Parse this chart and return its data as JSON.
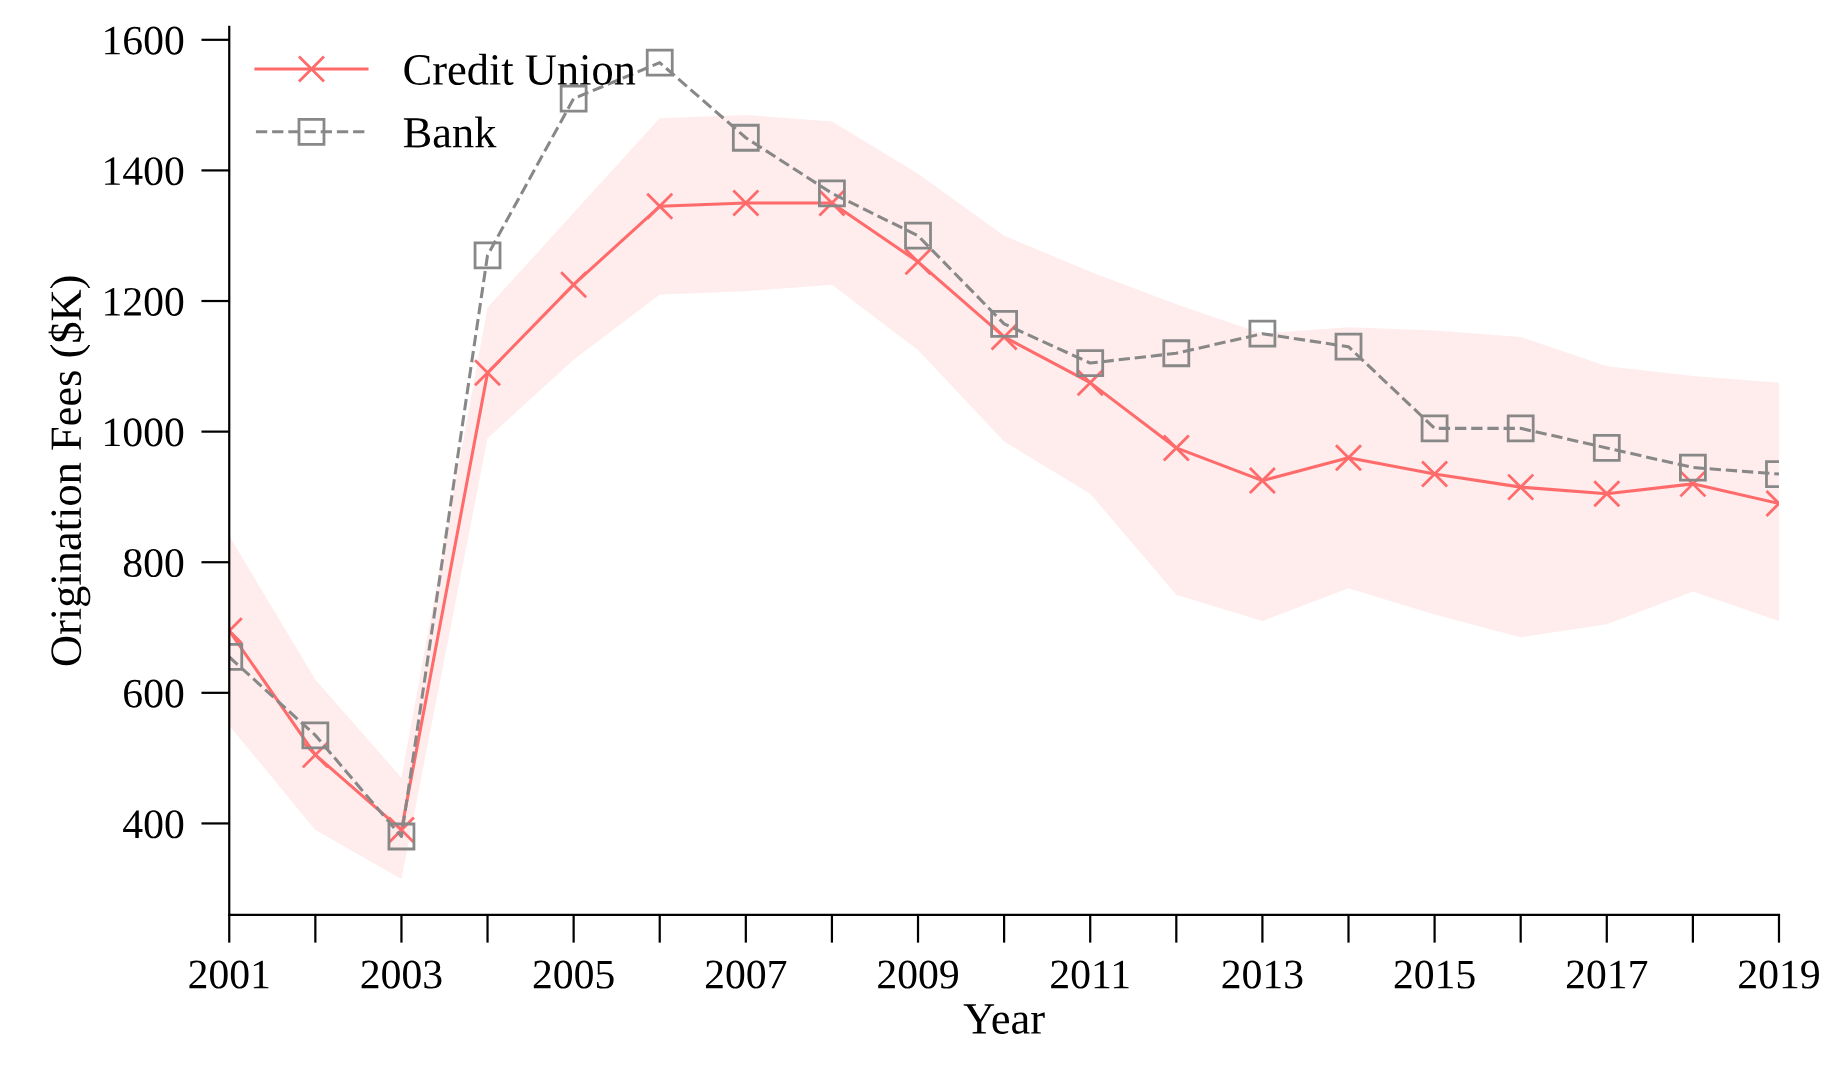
{
  "chart_data": {
    "type": "line",
    "xlabel": "Year",
    "ylabel": "Origination Fees ($K)",
    "x": [
      2001,
      2002,
      2003,
      2004,
      2005,
      2006,
      2007,
      2008,
      2009,
      2010,
      2011,
      2012,
      2013,
      2014,
      2015,
      2016,
      2017,
      2018,
      2019
    ],
    "series": [
      {
        "name": "Credit Union",
        "color": "#ff6b6b",
        "marker": "cross",
        "line_style": "solid",
        "values": [
          695,
          505,
          390,
          1090,
          1225,
          1345,
          1350,
          1350,
          1260,
          1145,
          1075,
          975,
          925,
          960,
          935,
          915,
          905,
          920,
          890
        ],
        "lower": [
          550,
          390,
          315,
          990,
          1110,
          1210,
          1215,
          1225,
          1125,
          985,
          905,
          750,
          710,
          760,
          720,
          685,
          705,
          755,
          710
        ],
        "upper": [
          840,
          620,
          470,
          1190,
          1335,
          1480,
          1485,
          1475,
          1395,
          1300,
          1245,
          1195,
          1150,
          1160,
          1155,
          1145,
          1100,
          1085,
          1075
        ]
      },
      {
        "name": "Bank",
        "color": "#888888",
        "marker": "square",
        "line_style": "dashed",
        "values": [
          655,
          535,
          380,
          1270,
          1510,
          1565,
          1450,
          1365,
          1300,
          1165,
          1105,
          1120,
          1150,
          1130,
          1005,
          1005,
          975,
          945,
          935
        ]
      }
    ],
    "xlim": [
      2001,
      2019
    ],
    "xticks": [
      2001,
      {
        "value": 2002,
        "label": null
      },
      2003,
      {
        "value": 2004,
        "label": null
      },
      2005,
      {
        "value": 2006,
        "label": null
      },
      2007,
      {
        "value": 2008,
        "label": null
      },
      2009,
      {
        "value": 2010,
        "label": null
      },
      2011,
      {
        "value": 2012,
        "label": null
      },
      2013,
      {
        "value": 2014,
        "label": null
      },
      2015,
      {
        "value": 2016,
        "label": null
      },
      2017,
      {
        "value": 2018,
        "label": null
      },
      2019
    ],
    "ylim": [
      260,
      1620
    ],
    "yticks": [
      400,
      600,
      800,
      1000,
      1200,
      1400,
      1600
    ],
    "grid": false,
    "legend": "top left"
  }
}
